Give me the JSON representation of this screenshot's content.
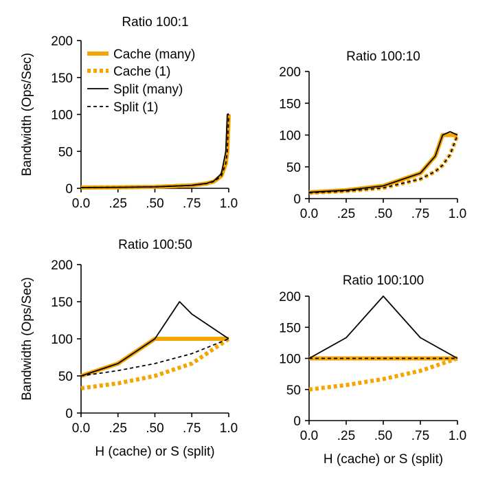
{
  "chart_data": [
    {
      "type": "line",
      "title": "Ratio 100:1",
      "ylabel": "Bandwidth (Ops/Sec)",
      "xlabel": "",
      "xlim": [
        0,
        1
      ],
      "ylim": [
        0,
        200
      ],
      "xticks": [
        "0.0",
        ".25",
        ".50",
        ".75",
        "1.0"
      ],
      "yticks": [
        "0",
        "50",
        "100",
        "150",
        "200"
      ],
      "legend_position": "top-left",
      "series": [
        {
          "name": "Cache (many)",
          "x": [
            0,
            0.25,
            0.5,
            0.75,
            0.85,
            0.9,
            0.95,
            0.98,
            0.99,
            1.0
          ],
          "values": [
            1.0,
            1.33,
            1.98,
            3.9,
            6.5,
            9.2,
            16.8,
            33.6,
            50.3,
            100.0
          ]
        },
        {
          "name": "Cache (1)",
          "x": [
            0,
            0.25,
            0.5,
            0.75,
            0.85,
            0.9,
            0.95,
            0.98,
            0.99,
            1.0
          ],
          "values": [
            0.99,
            1.32,
            1.98,
            3.88,
            6.4,
            9.2,
            16.8,
            33.6,
            50.3,
            100.0
          ]
        },
        {
          "name": "Split (many)",
          "x": [
            0,
            0.25,
            0.5,
            0.75,
            0.85,
            0.9,
            0.95,
            0.98,
            0.99,
            1.0
          ],
          "values": [
            1.0,
            1.33,
            2.0,
            4.0,
            6.7,
            10.0,
            20.0,
            50.0,
            100.0,
            101.0
          ]
        },
        {
          "name": "Split (1)",
          "x": [
            0,
            0.25,
            0.5,
            0.75,
            0.85,
            0.9,
            0.95,
            0.98,
            0.99,
            1.0
          ],
          "values": [
            0.99,
            1.32,
            1.98,
            3.88,
            6.4,
            9.2,
            16.8,
            33.6,
            50.3,
            100.0
          ]
        }
      ]
    },
    {
      "type": "line",
      "title": "Ratio 100:10",
      "ylabel": "",
      "xlabel": "",
      "xlim": [
        0,
        1
      ],
      "ylim": [
        0,
        200
      ],
      "xticks": [
        "0.0",
        ".25",
        ".50",
        ".75",
        "1.0"
      ],
      "yticks": [
        "0",
        "50",
        "100",
        "150",
        "200"
      ],
      "series": [
        {
          "name": "Cache (many)",
          "x": [
            0,
            0.25,
            0.5,
            0.75,
            0.85,
            0.9,
            0.95,
            1.0
          ],
          "values": [
            10.0,
            13.3,
            20.0,
            40.0,
            66.7,
            100.0,
            100.0,
            100.0
          ]
        },
        {
          "name": "Cache (1)",
          "x": [
            0,
            0.25,
            0.5,
            0.75,
            0.85,
            0.9,
            0.95,
            1.0
          ],
          "values": [
            9.1,
            11.8,
            16.9,
            30.8,
            42.6,
            52.6,
            69.0,
            100.0
          ]
        },
        {
          "name": "Split (many)",
          "x": [
            0,
            0.25,
            0.5,
            0.75,
            0.85,
            0.9,
            0.95,
            1.0
          ],
          "values": [
            10.0,
            13.3,
            20.0,
            40.0,
            66.7,
            100.0,
            105.3,
            100.0
          ]
        },
        {
          "name": "Split (1)",
          "x": [
            0,
            0.25,
            0.5,
            0.75,
            0.85,
            0.9,
            0.95,
            1.0
          ],
          "values": [
            9.1,
            11.8,
            16.9,
            30.8,
            42.6,
            52.6,
            69.0,
            100.0
          ]
        }
      ]
    },
    {
      "type": "line",
      "title": "Ratio 100:50",
      "ylabel": "Bandwidth (Ops/Sec)",
      "xlabel": "H (cache) or S (split)",
      "xlim": [
        0,
        1
      ],
      "ylim": [
        0,
        200
      ],
      "xticks": [
        "0.0",
        ".25",
        ".50",
        ".75",
        "1.0"
      ],
      "yticks": [
        "0",
        "50",
        "100",
        "150",
        "200"
      ],
      "series": [
        {
          "name": "Cache (many)",
          "x": [
            0,
            0.25,
            0.5,
            0.75,
            1.0
          ],
          "values": [
            50.0,
            66.7,
            100.0,
            100.0,
            100.0
          ]
        },
        {
          "name": "Cache (1)",
          "x": [
            0,
            0.25,
            0.5,
            0.75,
            1.0
          ],
          "values": [
            33.3,
            40.0,
            50.0,
            66.7,
            100.0
          ]
        },
        {
          "name": "Split (many)",
          "x": [
            0,
            0.25,
            0.5,
            0.667,
            0.75,
            1.0
          ],
          "values": [
            50.0,
            66.7,
            100.0,
            150.0,
            133.3,
            100.0
          ]
        },
        {
          "name": "Split (1)",
          "x": [
            0,
            0.25,
            0.5,
            0.75,
            1.0
          ],
          "values": [
            50.0,
            57.1,
            66.7,
            80.0,
            100.0
          ]
        }
      ]
    },
    {
      "type": "line",
      "title": "Ratio 100:100",
      "ylabel": "",
      "xlabel": "H (cache) or S (split)",
      "xlim": [
        0,
        1
      ],
      "ylim": [
        0,
        200
      ],
      "xticks": [
        "0.0",
        ".25",
        ".50",
        ".75",
        "1.0"
      ],
      "yticks": [
        "0",
        "50",
        "100",
        "150",
        "200"
      ],
      "series": [
        {
          "name": "Cache (many)",
          "x": [
            0,
            0.25,
            0.5,
            0.75,
            1.0
          ],
          "values": [
            100.0,
            100.0,
            100.0,
            100.0,
            100.0
          ]
        },
        {
          "name": "Cache (1)",
          "x": [
            0,
            0.25,
            0.5,
            0.75,
            1.0
          ],
          "values": [
            50.0,
            57.1,
            66.7,
            80.0,
            100.0
          ]
        },
        {
          "name": "Split (many)",
          "x": [
            0,
            0.25,
            0.5,
            0.75,
            1.0
          ],
          "values": [
            100.0,
            133.3,
            200.0,
            133.3,
            100.0
          ]
        },
        {
          "name": "Split (1)",
          "x": [
            0,
            0.25,
            0.5,
            0.75,
            1.0
          ],
          "values": [
            100.0,
            100.0,
            100.0,
            100.0,
            100.0
          ]
        }
      ]
    }
  ],
  "style": {
    "orange": "#f5a500",
    "black": "#000000"
  }
}
